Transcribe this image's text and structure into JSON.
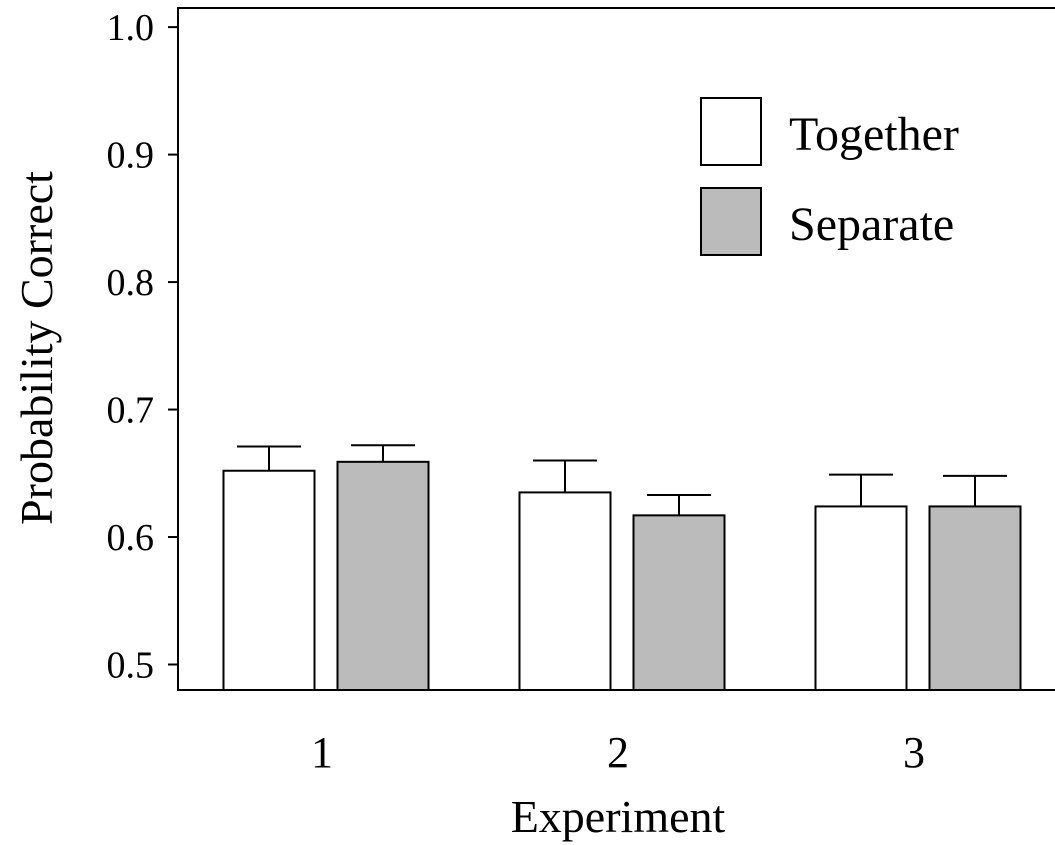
{
  "chart_data": {
    "type": "bar",
    "xlabel": "Experiment",
    "ylabel": "Probability Correct",
    "categories": [
      "1",
      "2",
      "3"
    ],
    "ylim": [
      0.48,
      1.015
    ],
    "yticks": [
      0.5,
      0.6,
      0.7,
      0.8,
      0.9,
      1.0
    ],
    "ytick_labels": [
      "0.5",
      "0.6",
      "0.7",
      "0.8",
      "0.9",
      "1.0"
    ],
    "grid": false,
    "legend_position": "top-right",
    "series": [
      {
        "name": "Together",
        "color": "#ffffff",
        "values": [
          0.652,
          0.635,
          0.624
        ],
        "errors": [
          0.019,
          0.025,
          0.025
        ]
      },
      {
        "name": "Separate",
        "color": "#bbbbbb",
        "values": [
          0.659,
          0.617,
          0.624
        ],
        "errors": [
          0.013,
          0.016,
          0.024
        ]
      }
    ]
  }
}
